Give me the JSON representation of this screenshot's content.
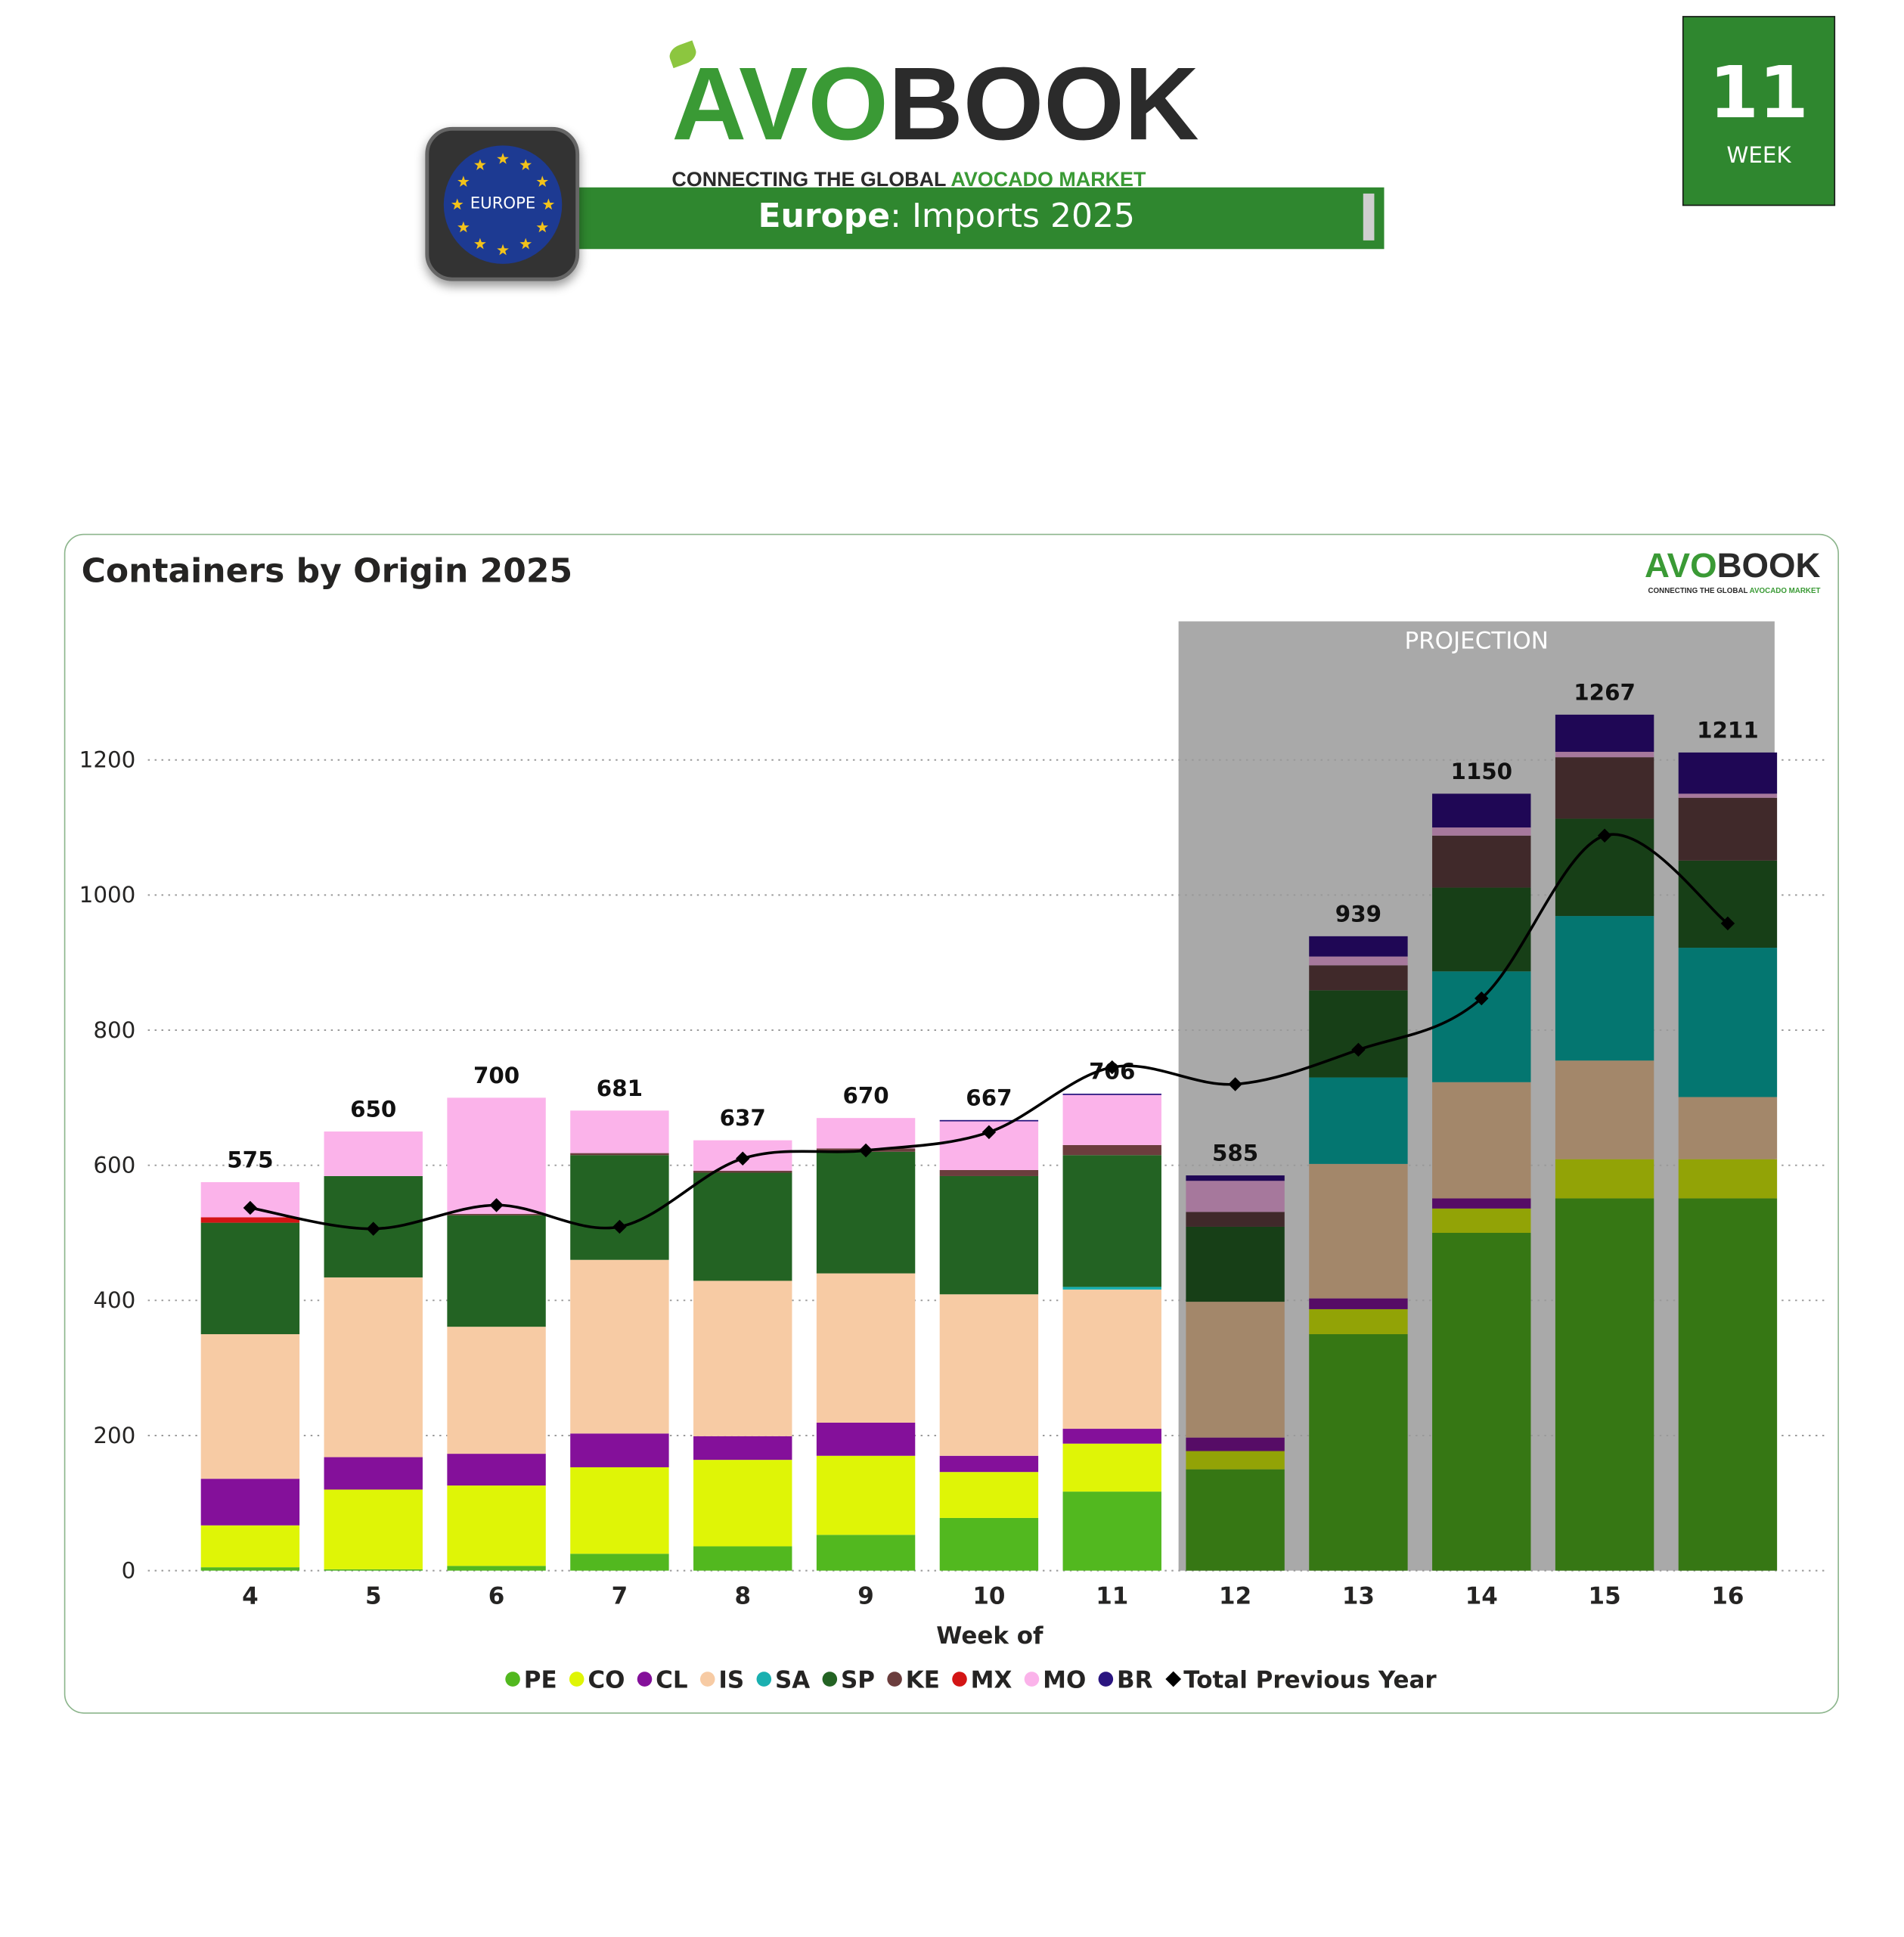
{
  "header": {
    "logo_avo": "AVO",
    "logo_book": "BOOK",
    "tagline_dark": "CONNECTING THE GLOBAL ",
    "tagline_green": "AVOCADO MARKET",
    "badge_label": "EUROPE",
    "banner_region": "Europe",
    "banner_rest": ": Imports 2025",
    "week_number": "11",
    "week_label": "WEEK"
  },
  "colors": {
    "brand_green": "#2f872f",
    "actual": {
      "PE": "#52b81f",
      "CO": "#dff506",
      "CL": "#84109a",
      "IS": "#f7cba4",
      "SA": "#1ab0b0",
      "SP": "#236323",
      "KE": "#6b3d3d",
      "MX": "#d31515",
      "MO": "#fbb3ea",
      "BR": "#2a1580"
    },
    "projection": {
      "PE": "#367714",
      "CO": "#92a306",
      "CL": "#560c66",
      "IS": "#a3876a",
      "SA": "#047670",
      "SP": "#173f17",
      "KE": "#40292a",
      "MX": "#8a1010",
      "MO": "#a6789c",
      "BR": "#1f0755"
    },
    "projection_band": "#a9a9a9",
    "line": "#000000"
  },
  "chart_data": {
    "type": "bar",
    "stacked": true,
    "title": "Containers by Origin 2025",
    "xlabel": "Week of",
    "ylabel": "",
    "ylim": [
      0,
      1400
    ],
    "yticks": [
      0,
      200,
      400,
      600,
      800,
      1000,
      1200
    ],
    "grid": "horizontal dotted",
    "legend_position": "bottom",
    "categories": [
      "4",
      "5",
      "6",
      "7",
      "8",
      "9",
      "10",
      "11",
      "12",
      "13",
      "14",
      "15",
      "16"
    ],
    "projection_label": "PROJECTION",
    "projection_categories": [
      "12",
      "13",
      "14",
      "15",
      "16"
    ],
    "series": [
      {
        "name": "PE",
        "values": [
          5,
          2,
          7,
          25,
          36,
          53,
          78,
          117,
          150,
          350,
          500,
          551,
          551
        ]
      },
      {
        "name": "CO",
        "values": [
          62,
          118,
          119,
          128,
          128,
          117,
          68,
          71,
          27,
          37,
          36,
          58,
          58
        ]
      },
      {
        "name": "CL",
        "values": [
          69,
          48,
          47,
          50,
          35,
          49,
          24,
          22,
          20,
          16,
          15,
          0,
          0
        ]
      },
      {
        "name": "IS",
        "values": [
          214,
          266,
          188,
          257,
          230,
          221,
          239,
          206,
          201,
          199,
          172,
          146,
          92
        ]
      },
      {
        "name": "SA",
        "values": [
          0,
          0,
          0,
          0,
          0,
          0,
          0,
          4,
          0,
          128,
          164,
          214,
          221
        ]
      },
      {
        "name": "SP",
        "values": [
          165,
          150,
          165,
          155,
          160,
          180,
          175,
          195,
          111,
          129,
          124,
          144,
          129
        ]
      },
      {
        "name": "KE",
        "values": [
          0,
          0,
          2,
          3,
          3,
          5,
          9,
          15,
          22,
          37,
          77,
          91,
          93
        ]
      },
      {
        "name": "MX",
        "values": [
          8,
          0,
          0,
          0,
          0,
          0,
          0,
          0,
          0,
          0,
          0,
          0,
          0
        ]
      },
      {
        "name": "MO",
        "values": [
          52,
          66,
          172,
          63,
          45,
          45,
          72,
          74,
          46,
          13,
          12,
          8,
          6
        ]
      },
      {
        "name": "BR",
        "values": [
          0,
          0,
          0,
          0,
          0,
          0,
          2,
          2,
          8,
          30,
          50,
          55,
          61
        ]
      }
    ],
    "totals": [
      575,
      650,
      700,
      681,
      637,
      670,
      667,
      706,
      585,
      939,
      1150,
      1267,
      1211
    ],
    "line_series": {
      "name": "Total Previous Year",
      "values": [
        537,
        506,
        541,
        509,
        610,
        622,
        649,
        745,
        720,
        771,
        847,
        1088,
        958
      ]
    }
  }
}
